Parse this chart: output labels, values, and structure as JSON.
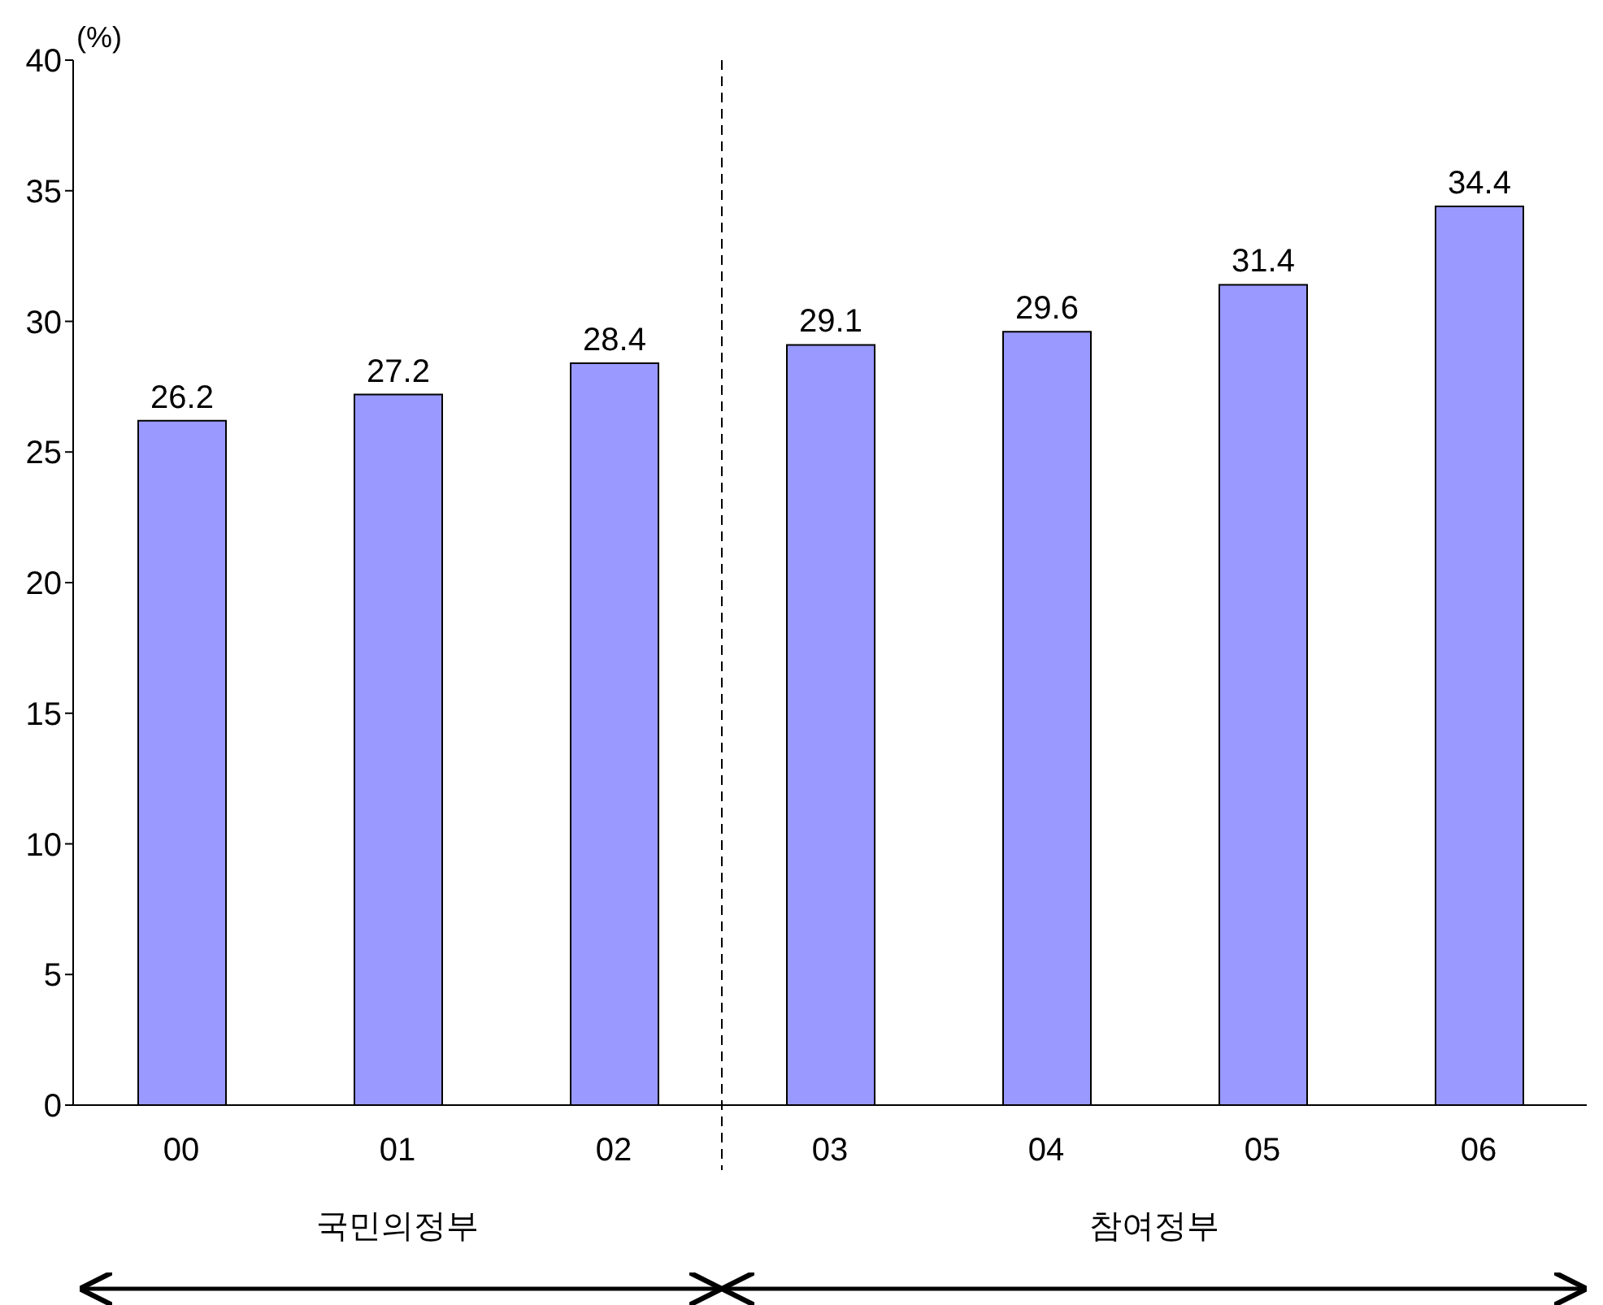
{
  "chart_data": {
    "type": "bar",
    "ylabel": "(%)",
    "categories": [
      "00",
      "01",
      "02",
      "03",
      "04",
      "05",
      "06"
    ],
    "values": [
      26.2,
      27.2,
      28.4,
      29.1,
      29.6,
      31.4,
      34.4
    ],
    "color": "#9999ff",
    "ylim": [
      0,
      40
    ],
    "yticks": [
      0,
      5,
      10,
      15,
      20,
      25,
      30,
      35,
      40
    ],
    "data_labels": true,
    "annotations": [
      "국민의정부",
      "참여정부"
    ]
  }
}
